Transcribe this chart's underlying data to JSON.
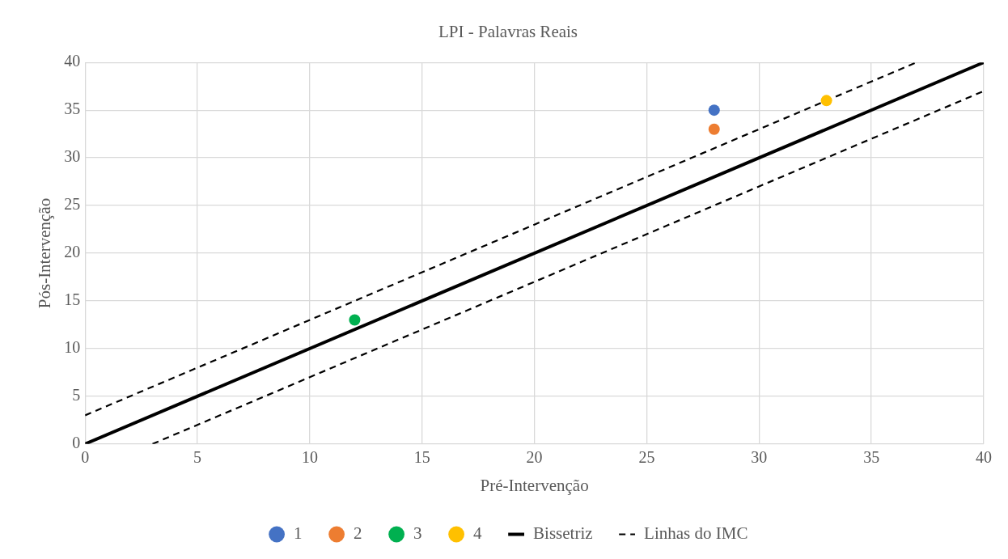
{
  "chart_data": {
    "type": "scatter",
    "title": "LPI - Palavras Reais",
    "xlabel": "Pré-Intervenção",
    "ylabel": "Pós-Intervenção",
    "xlim": [
      0,
      40
    ],
    "xticks": [
      0,
      5,
      10,
      15,
      20,
      25,
      30,
      35,
      40
    ],
    "ylim": [
      0,
      40
    ],
    "yticks": [
      0,
      5,
      10,
      15,
      20,
      25,
      30,
      35,
      40
    ],
    "grid": true,
    "legend": "bottom",
    "marker": "circle",
    "series": [
      {
        "name": "1",
        "color": "#4472c4",
        "x": [
          28
        ],
        "values": [
          35
        ]
      },
      {
        "name": "2",
        "color": "#ed7d31",
        "x": [
          28
        ],
        "values": [
          33
        ]
      },
      {
        "name": "3",
        "color": "#00b050",
        "x": [
          12
        ],
        "values": [
          13
        ]
      },
      {
        "name": "4",
        "color": "#ffc000",
        "x": [
          33
        ],
        "values": [
          36
        ]
      },
      {
        "name": "Bissetriz",
        "type": "line",
        "marker": "none",
        "color": "#000000",
        "line_style": "solid",
        "x": [
          0,
          40
        ],
        "values": [
          0,
          40
        ]
      },
      {
        "name": "Linhas do IMC",
        "type": "line",
        "marker": "none",
        "color": "#000000",
        "line_style": "dashed",
        "x": [
          0,
          37
        ],
        "values": [
          3,
          40
        ]
      },
      {
        "type": "line",
        "marker": "none",
        "color": "#000000",
        "line_style": "dashed",
        "x": [
          3,
          40
        ],
        "values": [
          0,
          37
        ]
      }
    ]
  }
}
